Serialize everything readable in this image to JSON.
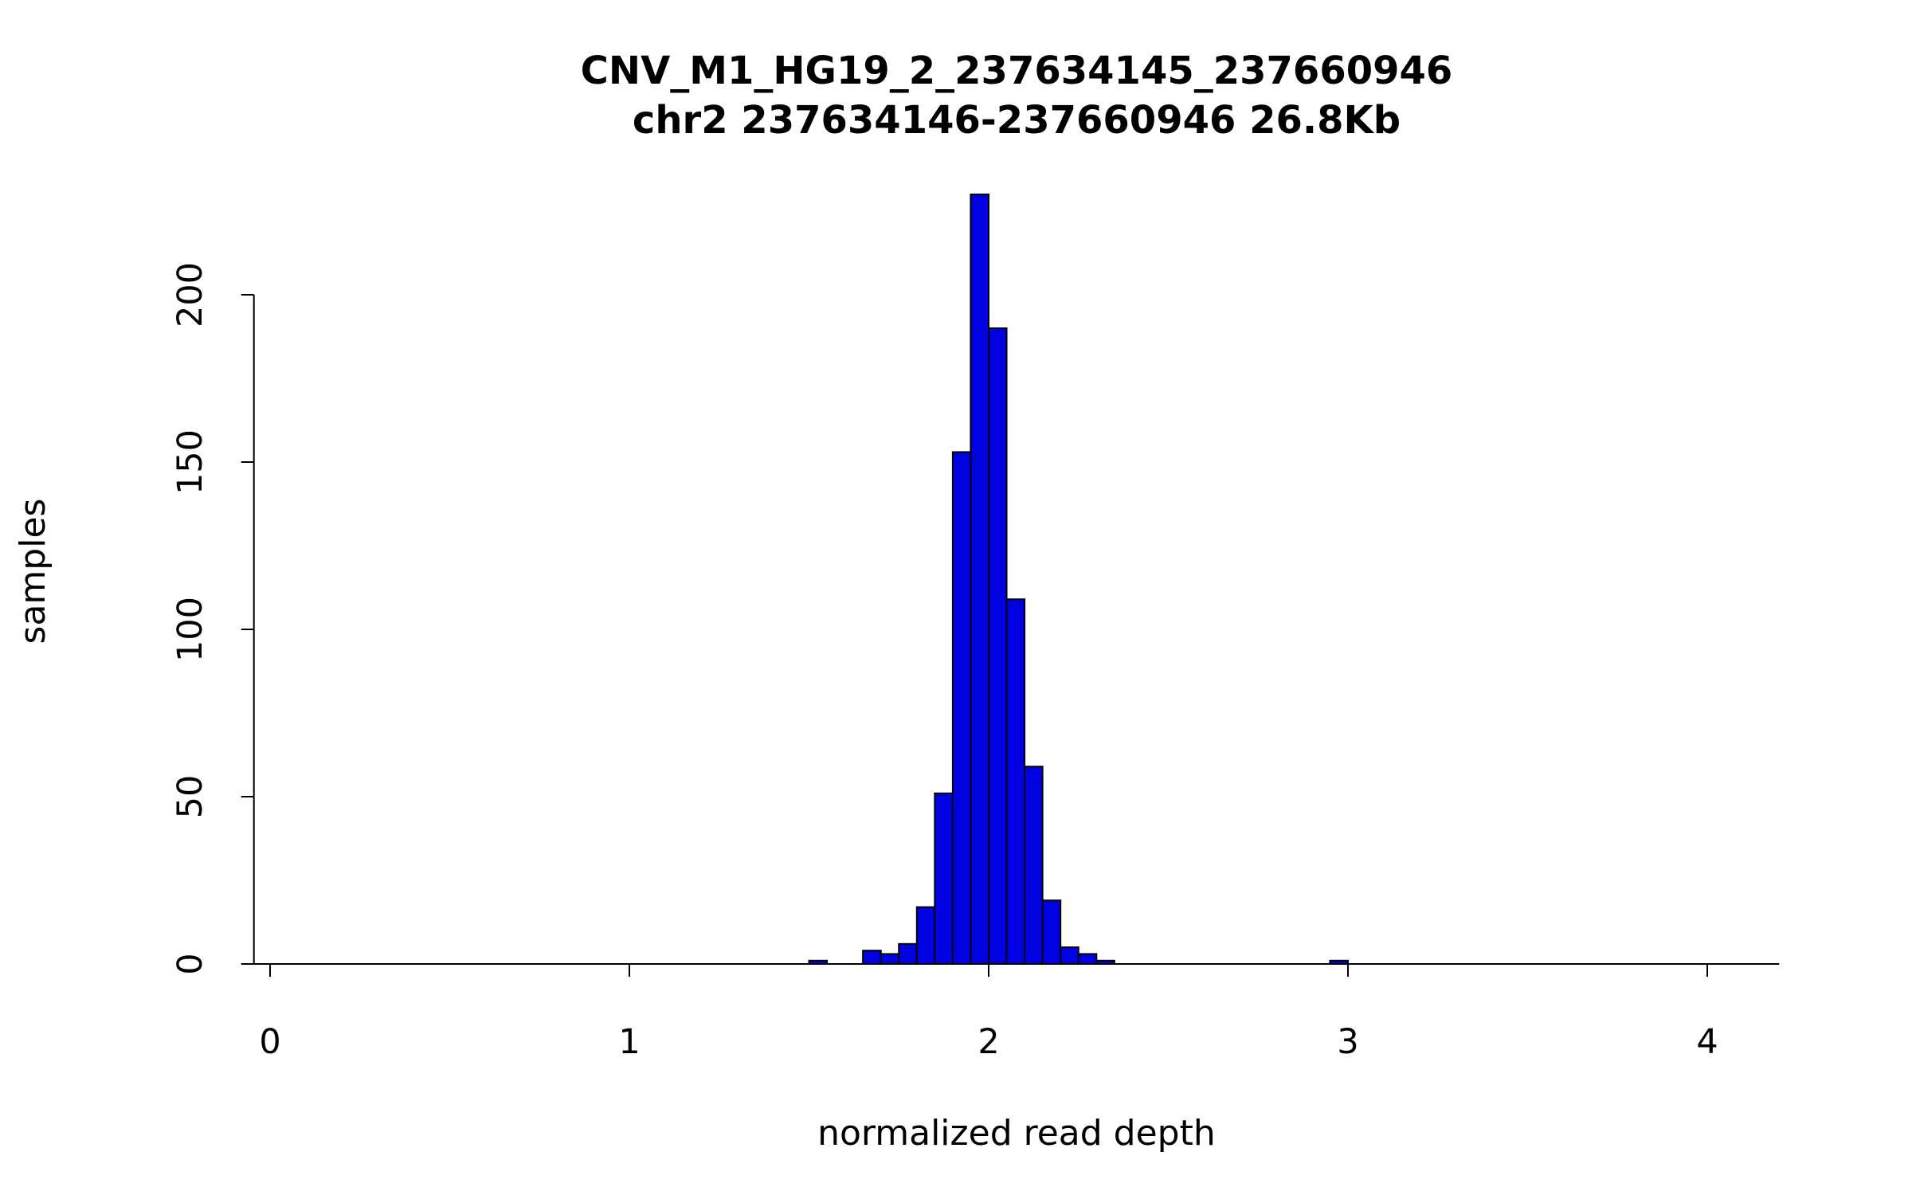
{
  "chart_data": {
    "type": "bar",
    "subtype": "histogram",
    "title": "CNV_M1_HG19_2_237634145_237660946",
    "subtitle": "chr2 237634146-237660946 26.8Kb",
    "xlabel": "normalized read depth",
    "ylabel": "samples",
    "xlim": [
      -0.045,
      4.2
    ],
    "ylim": [
      0,
      235
    ],
    "x_ticks": [
      0,
      1,
      2,
      3,
      4
    ],
    "y_ticks": [
      0,
      50,
      100,
      150,
      200
    ],
    "grid": false,
    "legend": false,
    "bin_width": 0.05,
    "bar_color": "#0000E0",
    "bar_border": "#000000",
    "axis_color": "#000000",
    "bins": [
      {
        "x": 1.5,
        "count": 1
      },
      {
        "x": 1.65,
        "count": 4
      },
      {
        "x": 1.7,
        "count": 3
      },
      {
        "x": 1.75,
        "count": 6
      },
      {
        "x": 1.8,
        "count": 17
      },
      {
        "x": 1.85,
        "count": 51
      },
      {
        "x": 1.9,
        "count": 153
      },
      {
        "x": 1.95,
        "count": 230
      },
      {
        "x": 2.0,
        "count": 190
      },
      {
        "x": 2.05,
        "count": 109
      },
      {
        "x": 2.1,
        "count": 59
      },
      {
        "x": 2.15,
        "count": 19
      },
      {
        "x": 2.2,
        "count": 5
      },
      {
        "x": 2.25,
        "count": 3
      },
      {
        "x": 2.3,
        "count": 1
      },
      {
        "x": 2.95,
        "count": 1
      }
    ]
  }
}
